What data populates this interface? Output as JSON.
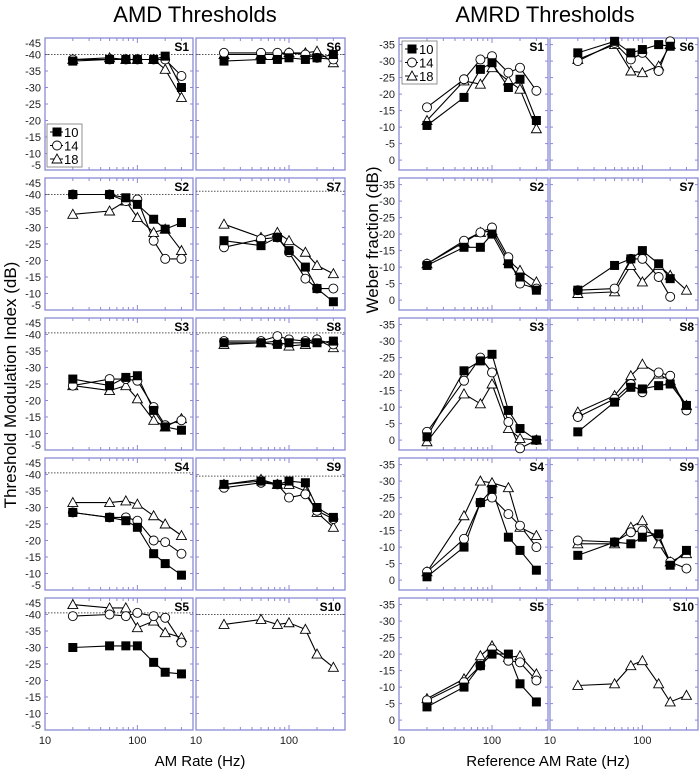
{
  "figure": {
    "left_title": "AMD Thresholds",
    "right_title": "AMRD Thresholds"
  },
  "colors": {
    "panel_border": "#8a8ad6",
    "marker": "#000000",
    "reference_line": "#555555"
  },
  "chart_data": [
    {
      "type": "line",
      "title": "AMD Thresholds",
      "xlabel": "AM Rate (Hz)",
      "ylabel": "Threshold Modulation Index (dB)",
      "xscale": "log",
      "xlim": [
        10,
        400
      ],
      "ylim": [
        -45,
        -5
      ],
      "y_reversed": true,
      "yticks": [
        -45,
        -40,
        -35,
        -30,
        -25,
        -20,
        -15,
        -10,
        -5
      ],
      "xtick_labels": [
        "10",
        "100"
      ],
      "x": [
        20,
        50,
        75,
        100,
        150,
        200,
        300
      ],
      "legend": {
        "entries": [
          "10",
          "14",
          "18"
        ],
        "placement": "lower-left of S1",
        "markers": [
          "filled-square",
          "open-circle",
          "open-triangle"
        ]
      },
      "panels": [
        {
          "label": "S1",
          "reference": -40,
          "series": [
            [
              -38,
              -38.5,
              -38.5,
              -38.5,
              -38.5,
              -39.5,
              -30
            ],
            [
              -38.5,
              -38.5,
              -38.5,
              -38.5,
              -38.5,
              -38.5,
              -33.5
            ],
            [
              -38.5,
              -39,
              -38.5,
              -38.5,
              -38.5,
              -35.5,
              -27
            ]
          ]
        },
        {
          "label": "S6",
          "reference": -40,
          "series": [
            [
              -38,
              -38.5,
              -38.5,
              -39,
              -38.5,
              -39,
              -40
            ],
            [
              -40.5,
              -40.5,
              -40.5,
              -40.5,
              -40,
              -39,
              -38.5
            ],
            [
              -40,
              -40,
              -40,
              -40.5,
              -40.5,
              -41,
              -37.5
            ]
          ]
        },
        {
          "label": "S2",
          "reference": -40,
          "series": [
            [
              -40,
              -40,
              -39,
              -37,
              -32.5,
              -29.5,
              -31.5
            ],
            [
              -40,
              -40,
              -38,
              -38.5,
              -26,
              -20.5,
              -20.5
            ],
            [
              -34,
              -35,
              -38,
              -33,
              -28.5,
              -29.5,
              -23
            ]
          ]
        },
        {
          "label": "S7",
          "reference": -41,
          "series": [
            [
              -26,
              -24.5,
              -27,
              -23,
              -18,
              -11.5,
              -7.5
            ],
            [
              -24,
              -26.5,
              -27,
              -22.5,
              -14.5,
              -11.5,
              -11.5
            ],
            [
              -31,
              -27,
              -28.5,
              -26,
              -22.5,
              -18.5,
              -16
            ]
          ]
        },
        {
          "label": "S3",
          "reference": -40.5,
          "series": [
            [
              -26.5,
              -24.5,
              -27,
              -27.5,
              -17,
              -12,
              -11
            ],
            [
              -24.5,
              -26.5,
              -26.5,
              -26,
              -18,
              -12.5,
              -14
            ],
            [
              -24.5,
              -23,
              -24.5,
              -20.5,
              -14,
              -12,
              -14.5
            ]
          ]
        },
        {
          "label": "S8",
          "reference": -40.5,
          "series": [
            [
              -37.5,
              -37.5,
              -37,
              -37.5,
              -37.5,
              -37.5,
              -38
            ],
            [
              -38,
              -38,
              -39.5,
              -38.5,
              -38,
              -38.5,
              -37
            ],
            [
              -37,
              -37.5,
              -38,
              -36.5,
              -37,
              -38.5,
              -36
            ]
          ]
        },
        {
          "label": "S4",
          "reference": -40.5,
          "series": [
            [
              -28.5,
              -27,
              -26,
              -24,
              -16,
              -13,
              -9.5
            ],
            [
              -28.5,
              -27,
              -27,
              -26,
              -20,
              -19.5,
              -16
            ],
            [
              -31.5,
              -31.5,
              -32,
              -31,
              -27.5,
              -25,
              -21.5
            ]
          ]
        },
        {
          "label": "S9",
          "reference": -39.5,
          "series": [
            [
              -37,
              -38,
              -37,
              -38,
              -37.5,
              -30,
              -27
            ],
            [
              -36,
              -37.5,
              -37,
              -33,
              -34,
              -29,
              -26.5
            ],
            [
              -37,
              -38.5,
              -37,
              -37,
              -35,
              -28.5,
              -24
            ]
          ]
        },
        {
          "label": "S5",
          "reference": -40.5,
          "series": [
            [
              -30,
              -30.5,
              -30.5,
              -30.5,
              -25.5,
              -22.5,
              -22
            ],
            [
              -39.5,
              -40,
              -39.5,
              -40.5,
              -39.5,
              -39,
              -31.5
            ],
            [
              -43,
              -42,
              -42,
              -36,
              -38,
              -34.5,
              -33
            ]
          ]
        },
        {
          "label": "S10",
          "reference": -40,
          "series": [
            null,
            null,
            [
              -37,
              -38.5,
              -37,
              -37.5,
              -35.5,
              -28,
              -24
            ]
          ]
        }
      ]
    },
    {
      "type": "line",
      "title": "AMRD Thresholds",
      "xlabel": "Reference AM Rate (Hz)",
      "ylabel": "Weber fraction (dB)",
      "xscale": "log",
      "xlim": [
        10,
        400
      ],
      "ylim": [
        -37,
        3
      ],
      "y_reversed": true,
      "yticks": [
        -35,
        -30,
        -25,
        -20,
        -15,
        -10,
        -5,
        0
      ],
      "xtick_labels": [
        "10",
        "100"
      ],
      "x": [
        20,
        50,
        75,
        100,
        150,
        200,
        300
      ],
      "legend": {
        "entries": [
          "10",
          "14",
          "18"
        ],
        "placement": "upper-left of S1",
        "markers": [
          "filled-square",
          "open-circle",
          "open-triangle"
        ]
      },
      "panels": [
        {
          "label": "S1",
          "series": [
            [
              -10.5,
              -19,
              -27.5,
              -29.5,
              -22,
              -24.5,
              -12
            ],
            [
              -16,
              -24.5,
              -30.5,
              -31.5,
              -26.5,
              -28,
              -21
            ],
            [
              -12,
              -24,
              -23,
              -28,
              -24,
              -21.5,
              -9.5
            ]
          ]
        },
        {
          "label": "S6",
          "series": [
            [
              -32.5,
              -36,
              -32.5,
              -33.5,
              -35,
              -34.5,
              null
            ],
            [
              -30,
              -35.5,
              -30.5,
              -32.5,
              -27,
              -36,
              null
            ],
            [
              -30.5,
              -35,
              -27,
              -26.5,
              -28.5,
              -35,
              null
            ]
          ]
        },
        {
          "label": "S2",
          "series": [
            [
              -10.5,
              -16,
              -16,
              -20,
              -11,
              -7,
              -3
            ],
            [
              -11,
              -18,
              -20.5,
              -22,
              -13,
              -5,
              -3.5
            ],
            [
              -11,
              -17.5,
              -20.5,
              -21,
              -12,
              -9,
              -5.5
            ]
          ]
        },
        {
          "label": "S7",
          "series": [
            [
              -3,
              -10.5,
              -12.5,
              -15,
              -11,
              -6.5,
              null
            ],
            [
              -3,
              -3.5,
              -12.5,
              -12.5,
              -7,
              -1,
              null
            ],
            [
              -2,
              -2.5,
              -10.5,
              -5.5,
              -10.5,
              -7.5,
              -3
            ]
          ]
        },
        {
          "label": "S3",
          "series": [
            [
              -1,
              -21,
              -24,
              -26,
              -9,
              -3.5,
              0
            ],
            [
              -2.5,
              -18,
              -25,
              -20.5,
              -5.5,
              2.5,
              0
            ],
            [
              0.5,
              -14,
              -11,
              -17,
              -3.5,
              -0.5,
              0
            ]
          ]
        },
        {
          "label": "S8",
          "series": [
            [
              -2.5,
              -11.5,
              -16,
              -15.5,
              -16.5,
              -17,
              -10.5
            ],
            [
              -7,
              -12.5,
              -17,
              -14.5,
              -20.5,
              -19.5,
              -9
            ],
            [
              -8.5,
              -13.5,
              -19.5,
              -23,
              -20,
              -18,
              -10.5
            ]
          ]
        },
        {
          "label": "S4",
          "series": [
            [
              -1,
              -10,
              -23.5,
              -27.5,
              -13,
              -9,
              -3
            ],
            [
              -2.5,
              -12.5,
              -23.5,
              -25,
              -20,
              -16.5,
              -10
            ],
            [
              -2.5,
              -19.5,
              -30,
              -29.5,
              -28,
              -16,
              -13.5
            ]
          ]
        },
        {
          "label": "S9",
          "series": [
            [
              -7.5,
              -11.5,
              -11,
              -13,
              -14,
              -4.5,
              -9
            ],
            [
              -12,
              -11.5,
              -14.5,
              -15,
              -13.5,
              -5.5,
              -3.5
            ],
            [
              -11,
              -11,
              -16,
              -18,
              -11,
              -5.5,
              -8
            ]
          ]
        },
        {
          "label": "S5",
          "series": [
            [
              -4,
              -10,
              -16.5,
              -20,
              -20,
              -11,
              -5.5
            ],
            [
              -6,
              -11.5,
              -16.5,
              -21.5,
              -18,
              -17.5,
              -12
            ],
            [
              -6.5,
              -12.5,
              -19.5,
              -22.5,
              -19,
              -19.5,
              -14
            ]
          ]
        },
        {
          "label": "S10",
          "series": [
            null,
            null,
            [
              -10.5,
              -11,
              -16.5,
              -18,
              -11,
              -5.5,
              -7.5
            ]
          ]
        }
      ]
    }
  ]
}
